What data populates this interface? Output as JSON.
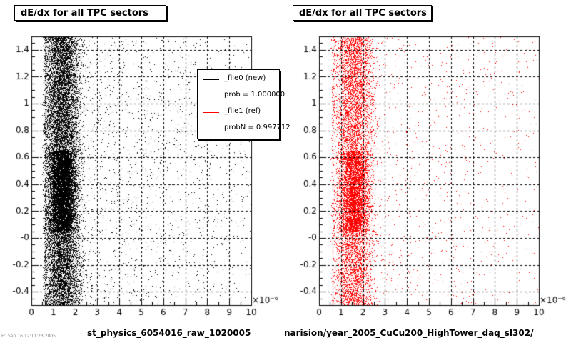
{
  "colors": {
    "new": "#000000",
    "ref": "#ff0000",
    "grid": "#000000"
  },
  "chart_data": [
    {
      "type": "scatter",
      "title": "dE/dx for all TPC sectors",
      "xlabel": "st_physics_6054016_raw_1020005",
      "x_exponent_label": "×10⁻⁶",
      "xlim": [
        0,
        10
      ],
      "ylim": [
        -0.5,
        1.5
      ],
      "xticks": [
        "0",
        "1",
        "2",
        "3",
        "4",
        "5",
        "6",
        "7",
        "8",
        "9",
        "10"
      ],
      "yticks": [
        "-0.4",
        "-0.2",
        "-0",
        "0.2",
        "0.4",
        "0.6",
        "0.8",
        "1",
        "1.2",
        "1.4"
      ],
      "grid": true,
      "series": [
        {
          "name": "_file0 (new)",
          "color": "#000000",
          "density": {
            "x_peak": 1.4,
            "x_spread": 0.55,
            "tail_to": 10,
            "points": 16000
          }
        }
      ],
      "legend": {
        "placement": "top-right",
        "entries": [
          {
            "label": "_file0 (new)",
            "color": "#000000"
          },
          {
            "label": "prob = 1.000000",
            "color": "#000000"
          },
          {
            "label": "_file1 (ref)",
            "color": "#ff0000"
          },
          {
            "label": "probN = 0.997712",
            "color": "#ff0000"
          }
        ]
      }
    },
    {
      "type": "scatter",
      "title": "dE/dx for all TPC sectors",
      "xlabel": "narision/year_2005_CuCu200_HighTower_daq_sl302/",
      "x_exponent_label": "×10⁻⁶",
      "xlim": [
        0,
        10
      ],
      "ylim": [
        -0.5,
        1.5
      ],
      "xticks": [
        "0",
        "1",
        "2",
        "3",
        "4",
        "5",
        "6",
        "7",
        "8",
        "9",
        "10"
      ],
      "yticks": [
        "-0.4",
        "-0.2",
        "-0",
        "0.2",
        "0.4",
        "0.6",
        "0.8",
        "1",
        "1.2",
        "1.4"
      ],
      "grid": true,
      "series": [
        {
          "name": "_file1 (ref)",
          "color": "#ff0000",
          "density": {
            "x_peak": 1.6,
            "x_spread": 0.6,
            "tail_to": 10,
            "points": 9000
          }
        }
      ]
    }
  ],
  "footer": "Fri Sep 16 12:11:23 2005"
}
